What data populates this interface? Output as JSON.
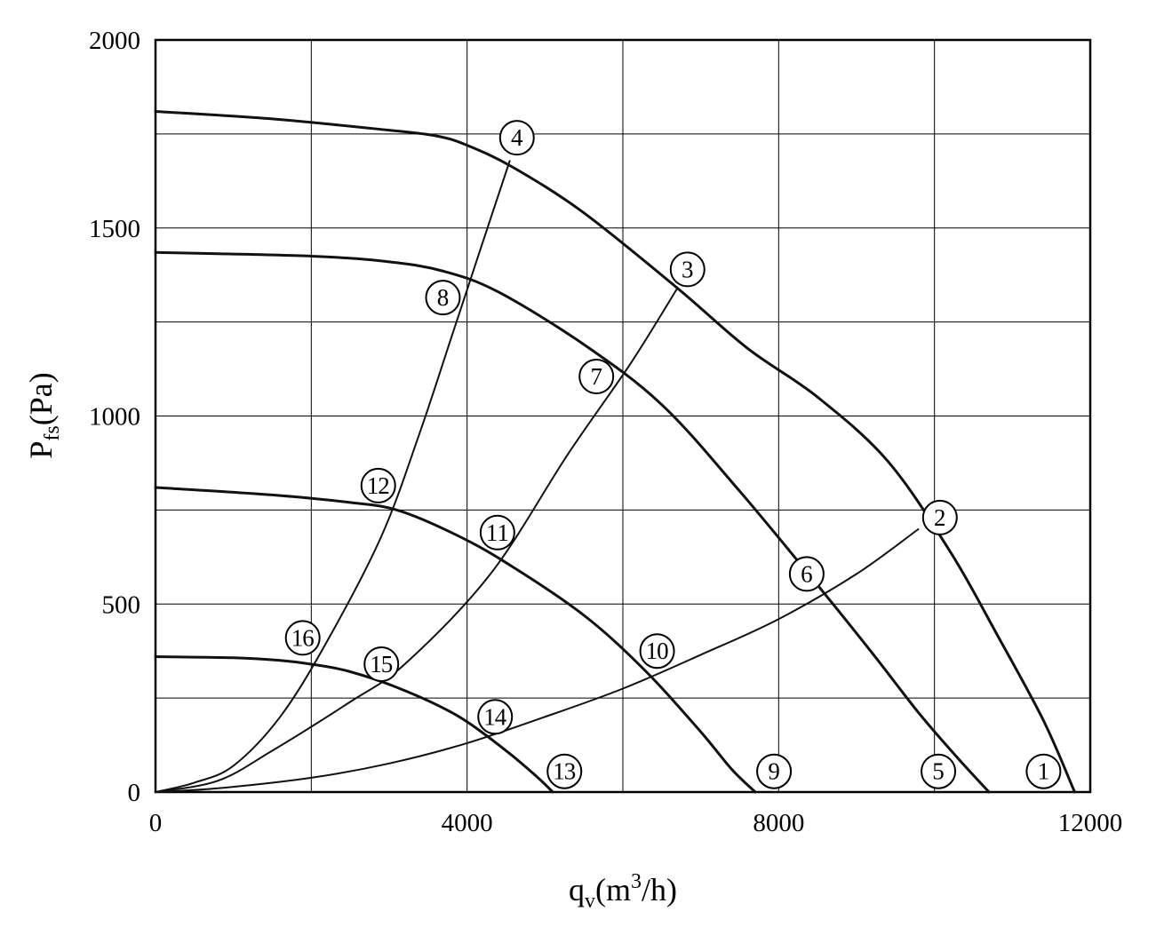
{
  "chart_data": {
    "type": "line",
    "xlabel": {
      "base": "q",
      "sub": "v",
      "unit_pre": "(m",
      "sup": "3",
      "unit_post": "/h)"
    },
    "ylabel": {
      "base": "P",
      "sub": "fs",
      "unit": "(Pa)"
    },
    "xlim": [
      0,
      12000
    ],
    "ylim": [
      0,
      2000
    ],
    "xticks": [
      0,
      4000,
      8000,
      12000
    ],
    "xtick_labels": [
      "0",
      "4000",
      "8000",
      "12000"
    ],
    "yticks": [
      0,
      500,
      1000,
      1500,
      2000
    ],
    "ytick_labels": [
      "0",
      "500",
      "1000",
      "1500",
      "2000"
    ],
    "x_grid": [
      2000,
      4000,
      6000,
      8000,
      10000
    ],
    "y_grid": [
      250,
      500,
      750,
      1000,
      1250,
      1500,
      1750
    ],
    "grid": true,
    "fan_curves": [
      {
        "x": [
          0,
          1500,
          3000,
          3600,
          4000,
          4600,
          5500,
          6700,
          7600,
          8500,
          9400,
          10200,
          10800,
          11400,
          11800
        ],
        "y": [
          1810,
          1790,
          1760,
          1745,
          1720,
          1660,
          1540,
          1340,
          1180,
          1050,
          880,
          640,
          420,
          190,
          0
        ]
      },
      {
        "x": [
          0,
          2000,
          3000,
          3700,
          4400,
          5500,
          6500,
          7500,
          8500,
          9200,
          9800,
          10300,
          10700
        ],
        "y": [
          1435,
          1425,
          1410,
          1385,
          1330,
          1190,
          1030,
          800,
          550,
          370,
          210,
          90,
          0
        ]
      },
      {
        "x": [
          0,
          1500,
          2500,
          3100,
          3800,
          4500,
          5500,
          6300,
          7000,
          7400,
          7700
        ],
        "y": [
          810,
          790,
          770,
          750,
          690,
          610,
          470,
          320,
          160,
          60,
          0
        ]
      },
      {
        "x": [
          0,
          1000,
          1600,
          2000,
          2500,
          3200,
          3900,
          4500,
          4900,
          5100
        ],
        "y": [
          360,
          357,
          350,
          340,
          320,
          270,
          200,
          110,
          40,
          0
        ]
      }
    ],
    "system_curves": [
      {
        "x": [
          0,
          800,
          2000,
          3000,
          4000,
          5000,
          6000,
          7000,
          8000,
          9000,
          9800
        ],
        "y": [
          0,
          10,
          38,
          76,
          130,
          200,
          275,
          365,
          460,
          580,
          700
        ]
      },
      {
        "x": [
          0,
          800,
          1500,
          2500,
          3200,
          4300,
          5300,
          6100,
          6700
        ],
        "y": [
          0,
          30,
          110,
          240,
          340,
          580,
          900,
          1140,
          1340
        ]
      },
      {
        "x": [
          0,
          500,
          1000,
          1600,
          2200,
          2900,
          3400,
          3800,
          4150,
          4550
        ],
        "y": [
          0,
          25,
          70,
          200,
          400,
          680,
          960,
          1210,
          1430,
          1680
        ]
      }
    ],
    "point_labels": [
      {
        "text": "1",
        "x": 11400,
        "y": 55
      },
      {
        "text": "2",
        "x": 10070,
        "y": 730
      },
      {
        "text": "3",
        "x": 6830,
        "y": 1390
      },
      {
        "text": "4",
        "x": 4640,
        "y": 1740
      },
      {
        "text": "5",
        "x": 10050,
        "y": 55
      },
      {
        "text": "6",
        "x": 8360,
        "y": 580
      },
      {
        "text": "7",
        "x": 5660,
        "y": 1105
      },
      {
        "text": "8",
        "x": 3690,
        "y": 1315
      },
      {
        "text": "9",
        "x": 7940,
        "y": 55
      },
      {
        "text": "10",
        "x": 6440,
        "y": 375
      },
      {
        "text": "11",
        "x": 4390,
        "y": 690
      },
      {
        "text": "12",
        "x": 2860,
        "y": 815
      },
      {
        "text": "13",
        "x": 5250,
        "y": 55
      },
      {
        "text": "14",
        "x": 4360,
        "y": 200
      },
      {
        "text": "15",
        "x": 2900,
        "y": 340
      },
      {
        "text": "16",
        "x": 1890,
        "y": 410
      }
    ]
  }
}
